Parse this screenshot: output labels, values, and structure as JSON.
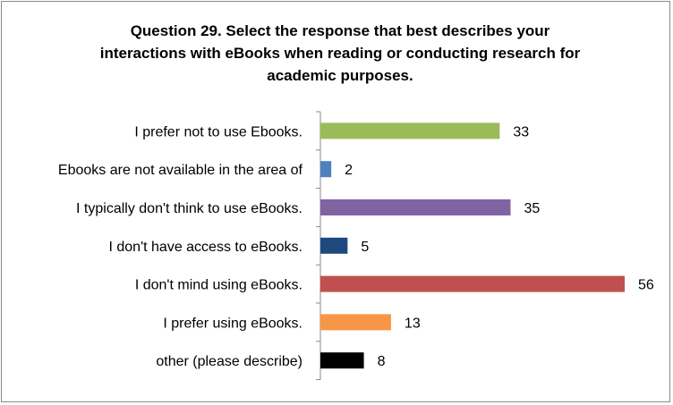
{
  "chart_data": {
    "type": "bar",
    "orientation": "horizontal",
    "title_lines": [
      "Question 29. Select the response that best describes your",
      "interactions with eBooks when reading or conducting research for",
      "academic purposes."
    ],
    "categories": [
      "I prefer not to use Ebooks.",
      "Ebooks are not available in the area of",
      "I  typically don't think to use eBooks.",
      "I don't have access to eBooks.",
      "I don't mind using eBooks.",
      "I prefer using eBooks.",
      "other (please describe)"
    ],
    "values": [
      33,
      2,
      35,
      5,
      56,
      13,
      8
    ],
    "colors": [
      "#9BBB59",
      "#4F81BD",
      "#8064A2",
      "#1F497D",
      "#C0504D",
      "#F79646",
      "#000000"
    ],
    "xlim": [
      0,
      56
    ],
    "grid": false,
    "legend": false,
    "data_labels": true
  }
}
